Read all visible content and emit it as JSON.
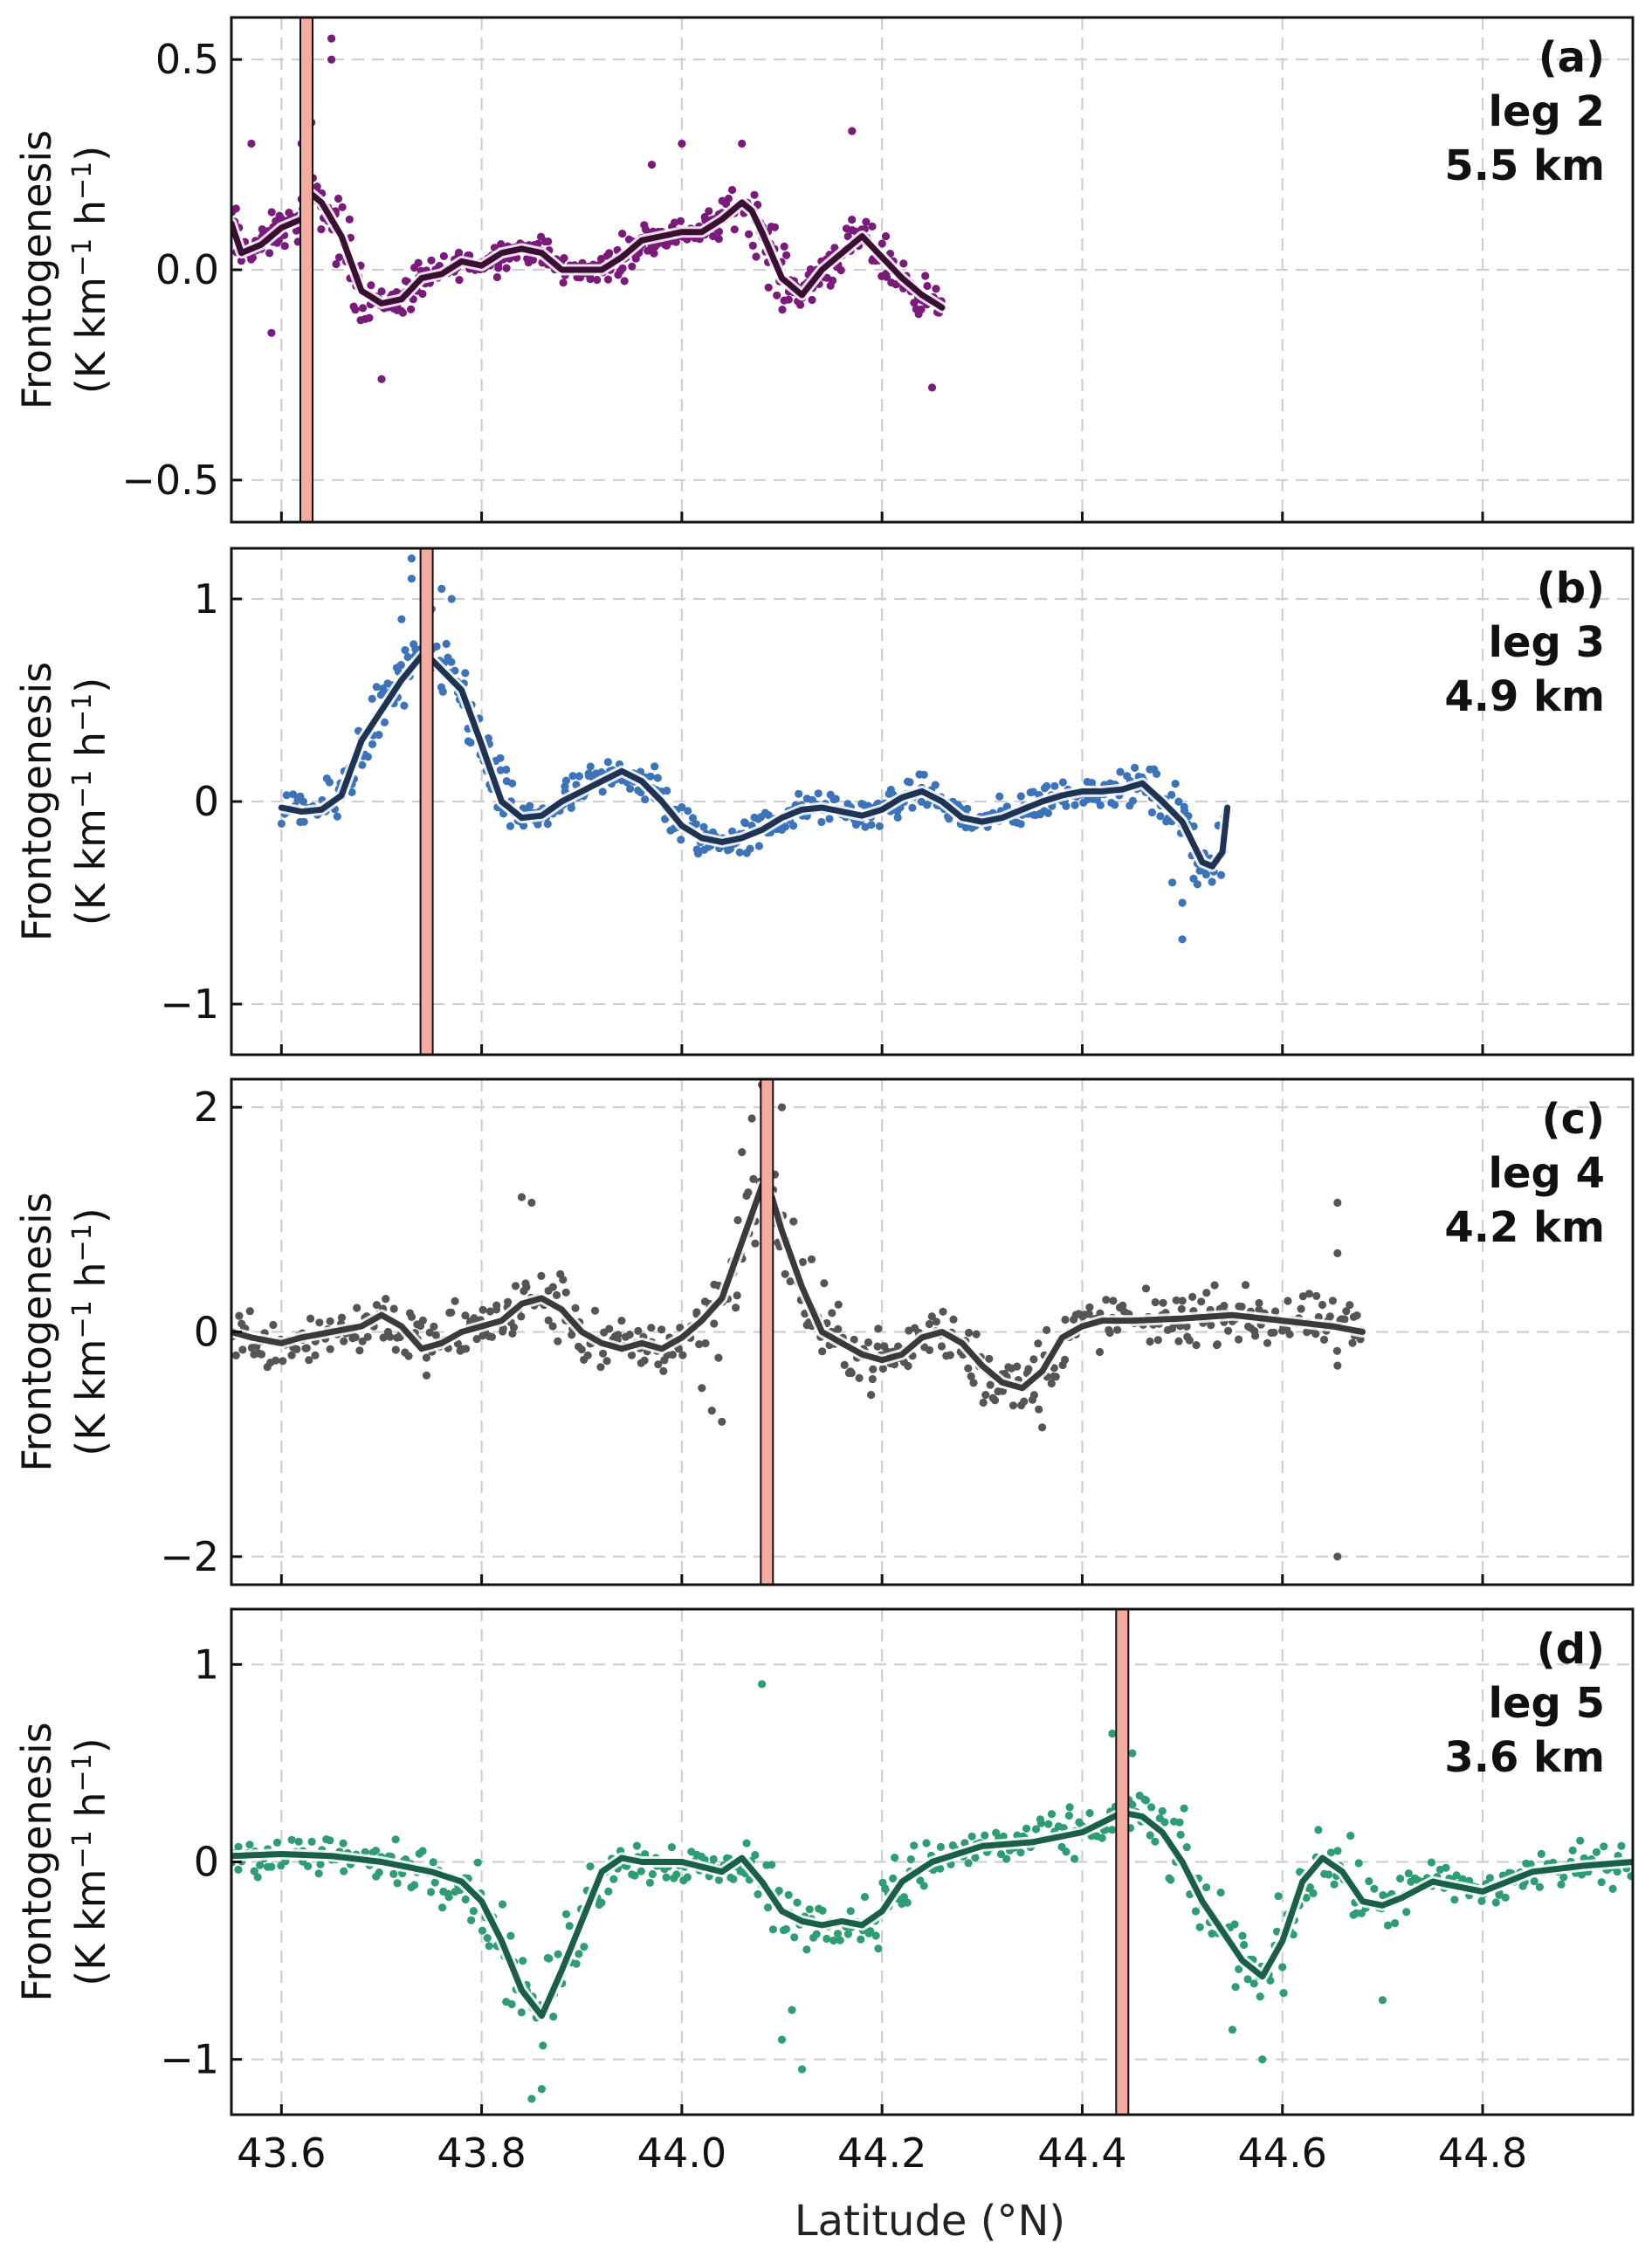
{
  "figure": {
    "xlabel": "Latitude (°N)",
    "ylabel_line1": "Frontogenesis",
    "ylabel_line2_main": "(K km",
    "ylabel_sup1": "−1",
    "ylabel_mid": " h",
    "ylabel_sup2": "−1",
    "ylabel_close": ")"
  },
  "chart_data": [
    {
      "type": "scatter",
      "panel_label": "(a)",
      "leg": "leg 2",
      "altitude": "5.5 km",
      "xlim": [
        43.55,
        44.95
      ],
      "ylim": [
        -0.6,
        0.6
      ],
      "xticks": [
        43.6,
        43.8,
        44.0,
        44.2,
        44.4,
        44.6,
        44.8
      ],
      "yticks": [
        -0.5,
        0.0,
        0.5
      ],
      "yticklabels": [
        "−0.5",
        "0.0",
        "0.5"
      ],
      "grid": true,
      "front_latitude": 43.625,
      "scatter_color": "#7a1a7a",
      "line_color": "#3a0f33",
      "scatter_spread": 0.06,
      "smooth": {
        "x": [
          43.55,
          43.56,
          43.58,
          43.6,
          43.62,
          43.63,
          43.64,
          43.66,
          43.68,
          43.7,
          43.72,
          43.74,
          43.76,
          43.78,
          43.8,
          43.82,
          43.84,
          43.86,
          43.88,
          43.9,
          43.92,
          43.94,
          43.96,
          43.98,
          44.0,
          44.02,
          44.04,
          44.06,
          44.07,
          44.08,
          44.1,
          44.12,
          44.14,
          44.16,
          44.18,
          44.2,
          44.22,
          44.24,
          44.26
        ],
        "y": [
          0.11,
          0.04,
          0.06,
          0.1,
          0.12,
          0.18,
          0.16,
          0.08,
          -0.05,
          -0.08,
          -0.07,
          -0.02,
          -0.01,
          0.02,
          0.01,
          0.04,
          0.05,
          0.04,
          0.0,
          0.0,
          0.0,
          0.03,
          0.07,
          0.08,
          0.09,
          0.09,
          0.12,
          0.16,
          0.14,
          0.09,
          -0.02,
          -0.06,
          0.0,
          0.04,
          0.08,
          0.03,
          -0.02,
          -0.06,
          -0.09
        ]
      },
      "outliers": [
        [
          43.65,
          0.55
        ],
        [
          43.65,
          0.5
        ],
        [
          43.63,
          0.35
        ],
        [
          43.62,
          0.3
        ],
        [
          43.57,
          0.3
        ],
        [
          43.59,
          -0.15
        ],
        [
          43.7,
          -0.26
        ],
        [
          44.0,
          0.3
        ],
        [
          44.06,
          0.3
        ],
        [
          44.17,
          0.33
        ],
        [
          44.25,
          -0.28
        ],
        [
          43.97,
          0.25
        ]
      ]
    },
    {
      "type": "scatter",
      "panel_label": "(b)",
      "leg": "leg 3",
      "altitude": "4.9 km",
      "xlim": [
        43.55,
        44.95
      ],
      "ylim": [
        -1.25,
        1.25
      ],
      "xticks": [
        43.6,
        43.8,
        44.0,
        44.2,
        44.4,
        44.6,
        44.8
      ],
      "yticks": [
        -1,
        0,
        1
      ],
      "yticklabels": [
        "−1",
        "0",
        "1"
      ],
      "grid": true,
      "front_latitude": 43.745,
      "scatter_color": "#3d73b8",
      "line_color": "#1f3354",
      "scatter_spread": 0.08,
      "smooth": {
        "x": [
          43.6,
          43.62,
          43.64,
          43.66,
          43.68,
          43.7,
          43.72,
          43.74,
          43.75,
          43.76,
          43.78,
          43.8,
          43.82,
          43.84,
          43.86,
          43.88,
          43.9,
          43.92,
          43.94,
          43.96,
          43.98,
          44.0,
          44.02,
          44.04,
          44.06,
          44.08,
          44.1,
          44.12,
          44.14,
          44.16,
          44.18,
          44.2,
          44.22,
          44.24,
          44.26,
          44.28,
          44.3,
          44.32,
          44.34,
          44.36,
          44.38,
          44.4,
          44.42,
          44.44,
          44.46,
          44.48,
          44.5,
          44.52,
          44.53,
          44.54,
          44.545
        ],
        "y": [
          -0.03,
          -0.05,
          -0.04,
          0.03,
          0.3,
          0.45,
          0.6,
          0.72,
          0.7,
          0.65,
          0.55,
          0.28,
          0.0,
          -0.08,
          -0.07,
          0.0,
          0.05,
          0.1,
          0.15,
          0.1,
          0.0,
          -0.12,
          -0.18,
          -0.2,
          -0.18,
          -0.14,
          -0.08,
          -0.04,
          -0.03,
          -0.05,
          -0.07,
          -0.04,
          0.02,
          0.05,
          0.0,
          -0.08,
          -0.1,
          -0.08,
          -0.04,
          0.0,
          0.03,
          0.05,
          0.05,
          0.06,
          0.09,
          0.0,
          -0.1,
          -0.3,
          -0.32,
          -0.25,
          -0.03
        ]
      },
      "outliers": [
        [
          43.73,
          1.2
        ],
        [
          43.73,
          1.1
        ],
        [
          43.76,
          1.05
        ],
        [
          43.77,
          1.0
        ],
        [
          43.75,
          0.95
        ],
        [
          44.5,
          -0.68
        ],
        [
          44.5,
          -0.5
        ],
        [
          44.49,
          -0.4
        ],
        [
          43.72,
          0.9
        ]
      ]
    },
    {
      "type": "scatter",
      "panel_label": "(c)",
      "leg": "leg 4",
      "altitude": "4.2 km",
      "xlim": [
        43.55,
        44.95
      ],
      "ylim": [
        -2.25,
        2.25
      ],
      "xticks": [
        43.6,
        43.8,
        44.0,
        44.2,
        44.4,
        44.6,
        44.8
      ],
      "yticks": [
        -2,
        0,
        2
      ],
      "yticklabels": [
        "−2",
        "0",
        "2"
      ],
      "grid": true,
      "front_latitude": 44.085,
      "scatter_color": "#555555",
      "line_color": "#3a3a3a",
      "scatter_spread": 0.15,
      "smooth": {
        "x": [
          43.55,
          43.57,
          43.6,
          43.62,
          43.65,
          43.68,
          43.7,
          43.72,
          43.74,
          43.76,
          43.78,
          43.8,
          43.82,
          43.84,
          43.86,
          43.88,
          43.9,
          43.92,
          43.94,
          43.96,
          43.98,
          44.0,
          44.02,
          44.04,
          44.06,
          44.08,
          44.09,
          44.1,
          44.12,
          44.14,
          44.16,
          44.18,
          44.2,
          44.22,
          44.24,
          44.26,
          44.28,
          44.3,
          44.32,
          44.34,
          44.36,
          44.38,
          44.4,
          44.42,
          44.45,
          44.5,
          44.55,
          44.6,
          44.65,
          44.68
        ],
        "y": [
          0.0,
          -0.05,
          -0.1,
          -0.05,
          0.0,
          0.05,
          0.15,
          0.05,
          -0.15,
          -0.1,
          0.0,
          0.05,
          0.1,
          0.25,
          0.3,
          0.2,
          0.0,
          -0.1,
          -0.15,
          -0.1,
          -0.15,
          -0.05,
          0.1,
          0.3,
          0.8,
          1.3,
          1.2,
          0.9,
          0.4,
          0.0,
          -0.1,
          -0.2,
          -0.25,
          -0.2,
          -0.05,
          0.0,
          -0.1,
          -0.3,
          -0.45,
          -0.5,
          -0.35,
          -0.05,
          0.05,
          0.1,
          0.1,
          0.12,
          0.15,
          0.1,
          0.05,
          0.0
        ]
      },
      "outliers": [
        [
          44.08,
          2.2
        ],
        [
          44.1,
          2.0
        ],
        [
          44.07,
          1.9
        ],
        [
          44.06,
          1.6
        ],
        [
          44.04,
          -0.8
        ],
        [
          44.03,
          -0.7
        ],
        [
          44.02,
          -0.5
        ],
        [
          43.84,
          1.2
        ],
        [
          43.85,
          1.15
        ],
        [
          44.655,
          1.15
        ],
        [
          44.655,
          0.7
        ],
        [
          44.655,
          -0.3
        ],
        [
          44.655,
          -2.0
        ],
        [
          44.36,
          -0.85
        ]
      ]
    },
    {
      "type": "scatter",
      "panel_label": "(d)",
      "leg": "leg 5",
      "altitude": "3.6 km",
      "xlim": [
        43.55,
        44.95
      ],
      "ylim": [
        -1.28,
        1.28
      ],
      "xticks": [
        43.6,
        43.8,
        44.0,
        44.2,
        44.4,
        44.6,
        44.8
      ],
      "yticks": [
        -1,
        0,
        1
      ],
      "yticklabels": [
        "−1",
        "0",
        "1"
      ],
      "grid": true,
      "front_latitude": 44.44,
      "scatter_color": "#2e9e72",
      "line_color": "#1a6048",
      "scatter_spread": 0.12,
      "smooth": {
        "x": [
          43.55,
          43.6,
          43.65,
          43.7,
          43.75,
          43.78,
          43.8,
          43.82,
          43.84,
          43.86,
          43.88,
          43.9,
          43.92,
          43.94,
          43.96,
          44.0,
          44.04,
          44.06,
          44.08,
          44.1,
          44.12,
          44.14,
          44.16,
          44.18,
          44.2,
          44.22,
          44.25,
          44.3,
          44.35,
          44.4,
          44.42,
          44.44,
          44.46,
          44.48,
          44.5,
          44.52,
          44.54,
          44.56,
          44.58,
          44.6,
          44.62,
          44.64,
          44.66,
          44.68,
          44.7,
          44.72,
          44.75,
          44.8,
          44.85,
          44.9,
          44.95
        ],
        "y": [
          0.03,
          0.04,
          0.03,
          0.0,
          -0.05,
          -0.1,
          -0.2,
          -0.4,
          -0.65,
          -0.78,
          -0.55,
          -0.3,
          -0.05,
          0.02,
          0.0,
          0.0,
          -0.05,
          0.02,
          -0.1,
          -0.25,
          -0.3,
          -0.32,
          -0.3,
          -0.32,
          -0.25,
          -0.1,
          0.0,
          0.08,
          0.1,
          0.15,
          0.2,
          0.25,
          0.23,
          0.15,
          0.0,
          -0.2,
          -0.35,
          -0.5,
          -0.58,
          -0.4,
          -0.1,
          0.02,
          -0.05,
          -0.2,
          -0.22,
          -0.18,
          -0.1,
          -0.15,
          -0.05,
          -0.02,
          0.0
        ]
      },
      "outliers": [
        [
          44.08,
          0.9
        ],
        [
          43.85,
          -1.2
        ],
        [
          43.86,
          -1.15
        ],
        [
          44.12,
          -1.05
        ],
        [
          44.58,
          -1.0
        ],
        [
          44.1,
          -0.9
        ],
        [
          44.11,
          -0.75
        ],
        [
          44.43,
          0.65
        ],
        [
          44.45,
          0.55
        ],
        [
          44.7,
          -0.7
        ],
        [
          44.55,
          -0.85
        ]
      ]
    }
  ]
}
